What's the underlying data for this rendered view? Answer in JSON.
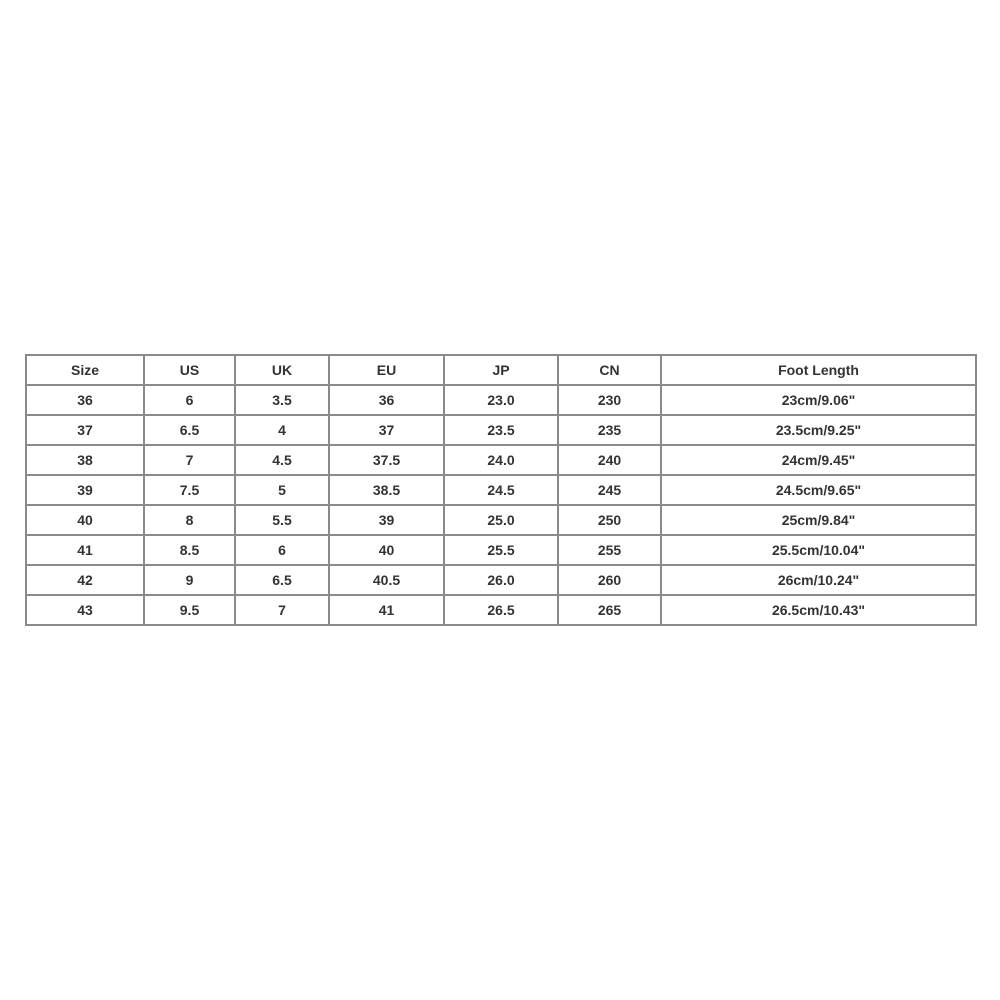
{
  "table": {
    "header": [
      "Size",
      "US",
      "UK",
      "EU",
      "JP",
      "CN",
      "Foot Length"
    ],
    "rows": [
      [
        "36",
        "6",
        "3.5",
        "36",
        "23.0",
        "230",
        "23cm/9.06\""
      ],
      [
        "37",
        "6.5",
        "4",
        "37",
        "23.5",
        "235",
        "23.5cm/9.25\""
      ],
      [
        "38",
        "7",
        "4.5",
        "37.5",
        "24.0",
        "240",
        "24cm/9.45\""
      ],
      [
        "39",
        "7.5",
        "5",
        "38.5",
        "24.5",
        "245",
        "24.5cm/9.65\""
      ],
      [
        "40",
        "8",
        "5.5",
        "39",
        "25.0",
        "250",
        "25cm/9.84\""
      ],
      [
        "41",
        "8.5",
        "6",
        "40",
        "25.5",
        "255",
        "25.5cm/10.04\""
      ],
      [
        "42",
        "9",
        "6.5",
        "40.5",
        "26.0",
        "260",
        "26cm/10.24\""
      ],
      [
        "43",
        "9.5",
        "7",
        "41",
        "26.5",
        "265",
        "26.5cm/10.43\""
      ]
    ]
  }
}
